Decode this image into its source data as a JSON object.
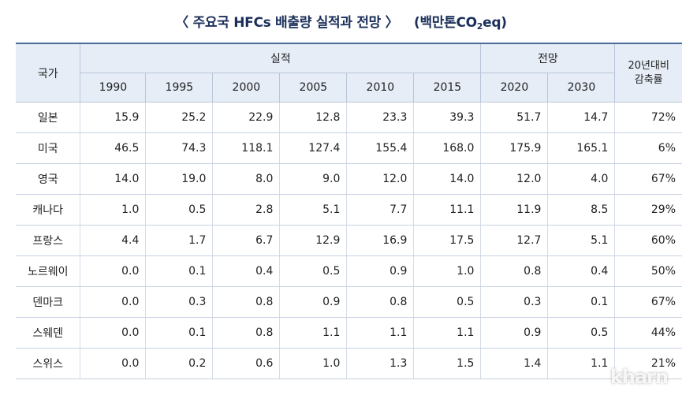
{
  "title": "〈 주요국 HFCs 배출량 실적과 전망 〉",
  "unit_prefix": "(백만톤CO",
  "unit_sub": "2",
  "unit_suffix": "eq)",
  "headers": {
    "country": "국가",
    "actual": "실적",
    "forecast": "전망",
    "rate_line1": "20년대비",
    "rate_line2": "감축률",
    "years": [
      "1990",
      "1995",
      "2000",
      "2005",
      "2010",
      "2015",
      "2020",
      "2030"
    ]
  },
  "rows": [
    {
      "country": "일본",
      "values": [
        "15.9",
        "25.2",
        "22.9",
        "12.8",
        "23.3",
        "39.3",
        "51.7",
        "14.7"
      ],
      "rate": "72%"
    },
    {
      "country": "미국",
      "values": [
        "46.5",
        "74.3",
        "118.1",
        "127.4",
        "155.4",
        "168.0",
        "175.9",
        "165.1"
      ],
      "rate": "6%"
    },
    {
      "country": "영국",
      "values": [
        "14.0",
        "19.0",
        "8.0",
        "9.0",
        "12.0",
        "14.0",
        "12.0",
        "4.0"
      ],
      "rate": "67%"
    },
    {
      "country": "캐나다",
      "values": [
        "1.0",
        "0.5",
        "2.8",
        "5.1",
        "7.7",
        "11.1",
        "11.9",
        "8.5"
      ],
      "rate": "29%"
    },
    {
      "country": "프랑스",
      "values": [
        "4.4",
        "1.7",
        "6.7",
        "12.9",
        "16.9",
        "17.5",
        "12.7",
        "5.1"
      ],
      "rate": "60%"
    },
    {
      "country": "노르웨이",
      "values": [
        "0.0",
        "0.1",
        "0.4",
        "0.5",
        "0.9",
        "1.0",
        "0.8",
        "0.4"
      ],
      "rate": "50%"
    },
    {
      "country": "덴마크",
      "values": [
        "0.0",
        "0.3",
        "0.8",
        "0.9",
        "0.8",
        "0.5",
        "0.3",
        "0.1"
      ],
      "rate": "67%"
    },
    {
      "country": "스웨덴",
      "values": [
        "0.0",
        "0.1",
        "0.8",
        "1.1",
        "1.1",
        "1.1",
        "0.9",
        "0.5"
      ],
      "rate": "44%"
    },
    {
      "country": "스위스",
      "values": [
        "0.0",
        "0.2",
        "0.6",
        "1.0",
        "1.3",
        "1.5",
        "1.4",
        "1.1"
      ],
      "rate": "21%"
    }
  ],
  "watermark": "kharn"
}
